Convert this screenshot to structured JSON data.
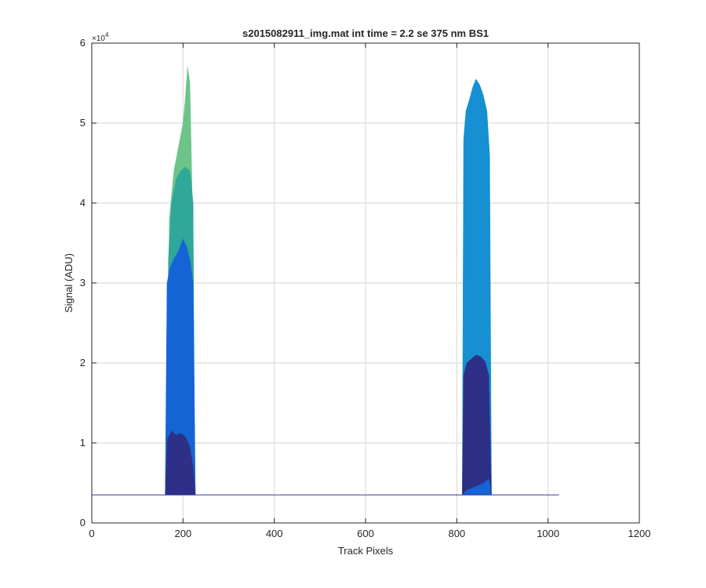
{
  "chart_data": {
    "type": "area",
    "title": "s2015082911_img.mat int time = 2.2 se  375 nm BS1",
    "xlabel": "Track Pixels",
    "ylabel": "Signal (ADU)",
    "exponent_label": "×10",
    "exponent_power": "4",
    "xlim": [
      0,
      1200
    ],
    "ylim": [
      0,
      60000
    ],
    "x_ticks": [
      0,
      200,
      400,
      600,
      800,
      1000,
      1200
    ],
    "y_ticks": [
      0,
      10000,
      20000,
      30000,
      40000,
      50000,
      60000
    ],
    "x_tick_labels": [
      "0",
      "200",
      "400",
      "600",
      "800",
      "1000",
      "1200"
    ],
    "y_tick_labels": [
      "0",
      "1",
      "2",
      "3",
      "4",
      "5",
      "6"
    ],
    "grid": true,
    "baseline": 3500,
    "baseline_range": [
      0,
      1024
    ],
    "colors": {
      "baseline": "#3b3f8f",
      "dark": "#2e2f87",
      "blue": "#1464d6",
      "cyan": "#1690d2",
      "green": "#2fa79a",
      "lightgreen": "#6cc489",
      "axis": "#262626",
      "grid": "#dcdcdc"
    },
    "series": [
      {
        "color_key": "lightgreen",
        "x": [
          163,
          170,
          180,
          190,
          200,
          205,
          210,
          215,
          220,
          226
        ],
        "y": [
          3500,
          38000,
          44000,
          47000,
          50000,
          53000,
          57000,
          55000,
          41000,
          3500
        ]
      },
      {
        "color_key": "green",
        "x": [
          163,
          168,
          175,
          185,
          195,
          205,
          215,
          222,
          226
        ],
        "y": [
          3500,
          33000,
          40000,
          43000,
          44000,
          44500,
          44000,
          40000,
          3500
        ]
      },
      {
        "color_key": "blue",
        "x": [
          161,
          165,
          172,
          180,
          190,
          200,
          208,
          215,
          222,
          227
        ],
        "y": [
          3500,
          30000,
          32000,
          33000,
          34000,
          35500,
          34500,
          33000,
          30000,
          3500
        ]
      },
      {
        "color_key": "dark",
        "x": [
          161,
          166,
          175,
          185,
          195,
          205,
          215,
          222,
          227
        ],
        "y": [
          3500,
          10500,
          11500,
          11000,
          11200,
          10800,
          9500,
          7000,
          3500
        ]
      },
      {
        "color_key": "cyan",
        "x": [
          812,
          815,
          820,
          828,
          835,
          842,
          850,
          858,
          866,
          872,
          876
        ],
        "y": [
          3500,
          48000,
          51500,
          53000,
          54500,
          55500,
          54800,
          53500,
          51500,
          46000,
          3500
        ]
      },
      {
        "color_key": "dark",
        "x": [
          812,
          815,
          822,
          832,
          842,
          852,
          862,
          870,
          876
        ],
        "y": [
          3500,
          18500,
          20000,
          20500,
          21000,
          20800,
          20200,
          18500,
          3500
        ]
      },
      {
        "color_key": "blue",
        "x": [
          812,
          820,
          840,
          860,
          870,
          876
        ],
        "y": [
          3500,
          4000,
          4500,
          5000,
          5500,
          3500
        ]
      }
    ]
  }
}
